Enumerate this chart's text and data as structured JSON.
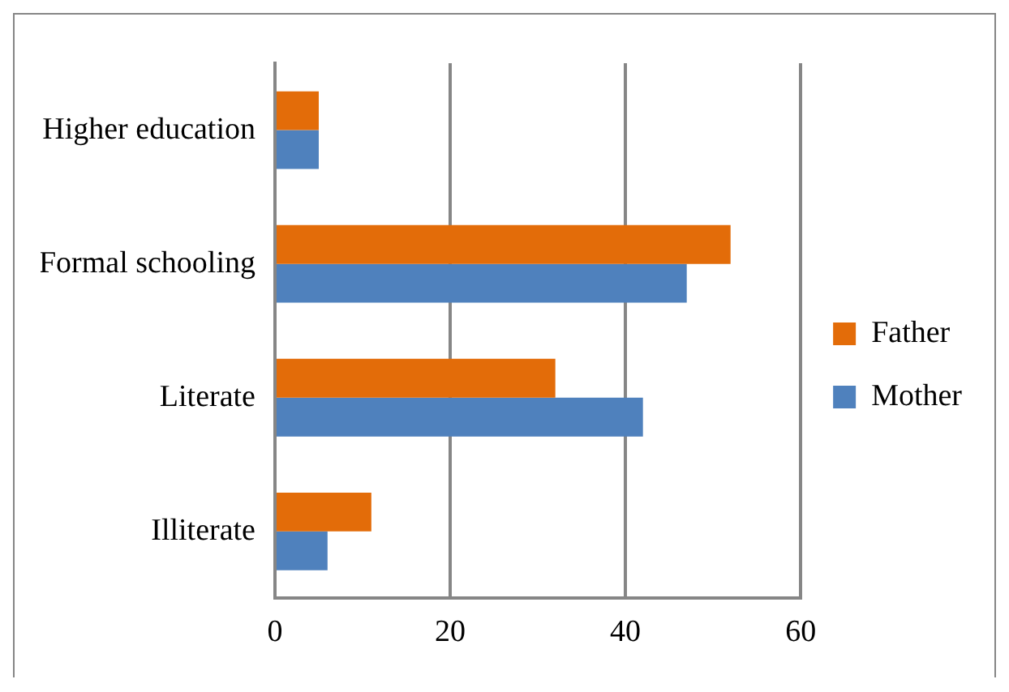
{
  "chart_data": {
    "type": "bar",
    "orientation": "horizontal",
    "categories": [
      "Higher education",
      "Formal schooling",
      "Literate",
      "Illiterate"
    ],
    "series": [
      {
        "name": "Father",
        "color": "#e36c09",
        "values": [
          5,
          52,
          32,
          11
        ]
      },
      {
        "name": "Mother",
        "color": "#4f81bd",
        "values": [
          5,
          47,
          42,
          6
        ]
      }
    ],
    "xlim": [
      0,
      60
    ],
    "xticks": [
      0,
      20,
      40,
      60
    ],
    "grid": "x",
    "legend": "right"
  }
}
